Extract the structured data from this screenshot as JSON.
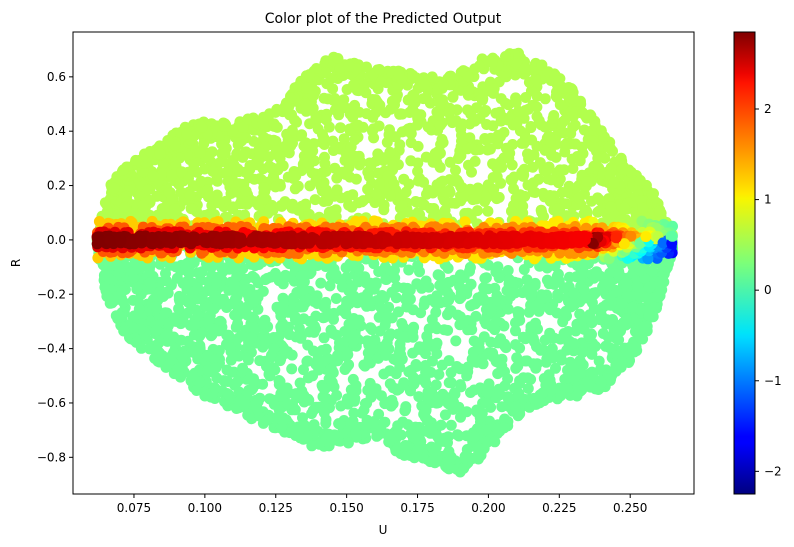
{
  "chart_data": {
    "type": "scatter",
    "title": "Color plot of the Predicted Output",
    "xlabel": "U",
    "ylabel": "R",
    "xlim": [
      0.0535,
      0.2725
    ],
    "ylim": [
      -0.935,
      0.765
    ],
    "x_ticks": [
      0.075,
      0.1,
      0.125,
      0.15,
      0.175,
      0.2,
      0.225,
      0.25
    ],
    "x_tick_labels": [
      "0.075",
      "0.100",
      "0.125",
      "0.150",
      "0.175",
      "0.200",
      "0.225",
      "0.250"
    ],
    "y_ticks": [
      0.6,
      0.4,
      0.2,
      0.0,
      -0.2,
      -0.4,
      -0.6,
      -0.8
    ],
    "y_tick_labels": [
      "0.6",
      "0.4",
      "0.2",
      "0.0",
      "−0.2",
      "−0.4",
      "−0.6",
      "−0.8"
    ],
    "grid": false,
    "colormap": "jet",
    "colorbar": {
      "vmin": -2.25,
      "vmax": 2.85,
      "ticks": [
        2,
        1,
        0,
        -1,
        -2
      ],
      "tick_labels": [
        "2",
        "1",
        "0",
        "−1",
        "−2"
      ]
    },
    "point_color_value_above_zero": 0.55,
    "point_color_value_below_zero": 0.2,
    "band_peak_value": 2.85,
    "band_right_end_value": -1.6,
    "x_range": [
      0.062,
      0.265
    ],
    "upper_envelope": {
      "x": [
        0.062,
        0.066,
        0.075,
        0.085,
        0.093,
        0.1,
        0.11,
        0.125,
        0.135,
        0.145,
        0.16,
        0.17,
        0.18,
        0.19,
        0.2,
        0.21,
        0.22,
        0.23,
        0.24,
        0.25,
        0.258,
        0.265
      ],
      "y": [
        0.02,
        0.2,
        0.3,
        0.36,
        0.42,
        0.44,
        0.43,
        0.48,
        0.6,
        0.68,
        0.63,
        0.62,
        0.6,
        0.62,
        0.68,
        0.69,
        0.64,
        0.56,
        0.4,
        0.26,
        0.18,
        0.02
      ]
    },
    "lower_envelope": {
      "x": [
        0.062,
        0.065,
        0.072,
        0.08,
        0.09,
        0.1,
        0.11,
        0.12,
        0.13,
        0.14,
        0.15,
        0.16,
        0.17,
        0.18,
        0.19,
        0.2,
        0.21,
        0.22,
        0.23,
        0.24,
        0.25,
        0.258,
        0.265
      ],
      "y": [
        -0.02,
        -0.2,
        -0.35,
        -0.42,
        -0.5,
        -0.58,
        -0.62,
        -0.68,
        -0.72,
        -0.77,
        -0.75,
        -0.72,
        -0.8,
        -0.82,
        -0.86,
        -0.78,
        -0.65,
        -0.6,
        -0.58,
        -0.56,
        -0.45,
        -0.3,
        -0.04
      ]
    }
  }
}
